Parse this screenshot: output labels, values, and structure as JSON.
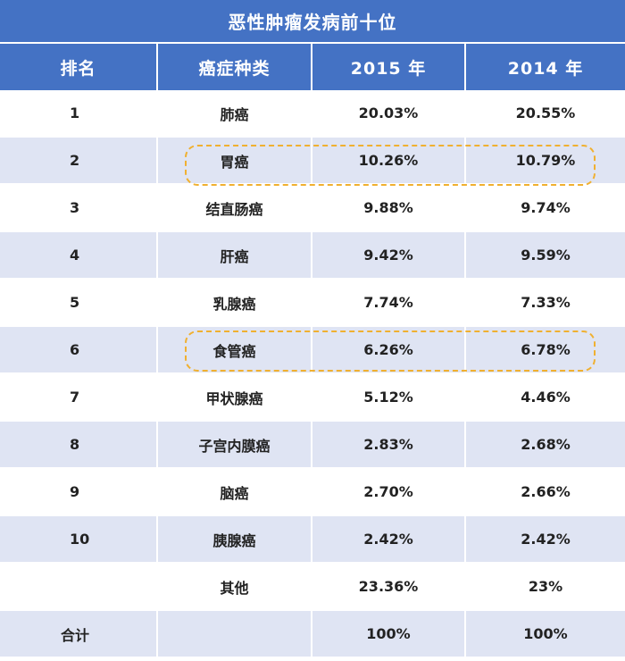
{
  "title": "恶性肿瘤发病前十位",
  "headers": [
    "排名",
    "癌症种类",
    "2015 年",
    "2014 年"
  ],
  "rows": [
    {
      "rank": "1",
      "type": "肺癌",
      "y2015": "20.03%",
      "y2014": "20.55%"
    },
    {
      "rank": "2",
      "type": "胃癌",
      "y2015": "10.26%",
      "y2014": "10.79%"
    },
    {
      "rank": "3",
      "type": "结直肠癌",
      "y2015": "9.88%",
      "y2014": "9.74%"
    },
    {
      "rank": "4",
      "type": "肝癌",
      "y2015": "9.42%",
      "y2014": "9.59%"
    },
    {
      "rank": "5",
      "type": "乳腺癌",
      "y2015": "7.74%",
      "y2014": "7.33%"
    },
    {
      "rank": "6",
      "type": "食管癌",
      "y2015": "6.26%",
      "y2014": "6.78%"
    },
    {
      "rank": "7",
      "type": "甲状腺癌",
      "y2015": "5.12%",
      "y2014": "4.46%"
    },
    {
      "rank": "8",
      "type": "子宫内膜癌",
      "y2015": "2.83%",
      "y2014": "2.68%"
    },
    {
      "rank": "9",
      "type": "脑癌",
      "y2015": "2.70%",
      "y2014": "2.66%"
    },
    {
      "rank": "10",
      "type": "胰腺癌",
      "y2015": "2.42%",
      "y2014": "2.42%"
    },
    {
      "rank": "",
      "type": "其他",
      "y2015": "23.36%",
      "y2014": "23%"
    },
    {
      "rank": "合计",
      "type": "",
      "y2015": "100%",
      "y2014": "100%"
    }
  ],
  "highlight_color": "#f0b030",
  "header_color": "#4472c4",
  "stripe_color": "#dfe4f3",
  "chart_data": {
    "type": "table",
    "title": "恶性肿瘤发病前十位",
    "columns": [
      "排名",
      "癌症种类",
      "2015 年",
      "2014 年"
    ],
    "rows": [
      [
        "1",
        "肺癌",
        "20.03%",
        "20.55%"
      ],
      [
        "2",
        "胃癌",
        "10.26%",
        "10.79%"
      ],
      [
        "3",
        "结直肠癌",
        "9.88%",
        "9.74%"
      ],
      [
        "4",
        "肝癌",
        "9.42%",
        "9.59%"
      ],
      [
        "5",
        "乳腺癌",
        "7.74%",
        "7.33%"
      ],
      [
        "6",
        "食管癌",
        "6.26%",
        "6.78%"
      ],
      [
        "7",
        "甲状腺癌",
        "5.12%",
        "4.46%"
      ],
      [
        "8",
        "子宫内膜癌",
        "2.83%",
        "2.68%"
      ],
      [
        "9",
        "脑癌",
        "2.70%",
        "2.66%"
      ],
      [
        "10",
        "胰腺癌",
        "2.42%",
        "2.42%"
      ],
      [
        "",
        "其他",
        "23.36%",
        "23%"
      ],
      [
        "合计",
        "",
        "100%",
        "100%"
      ]
    ],
    "highlighted_rows": [
      "胃癌",
      "食管癌"
    ]
  }
}
